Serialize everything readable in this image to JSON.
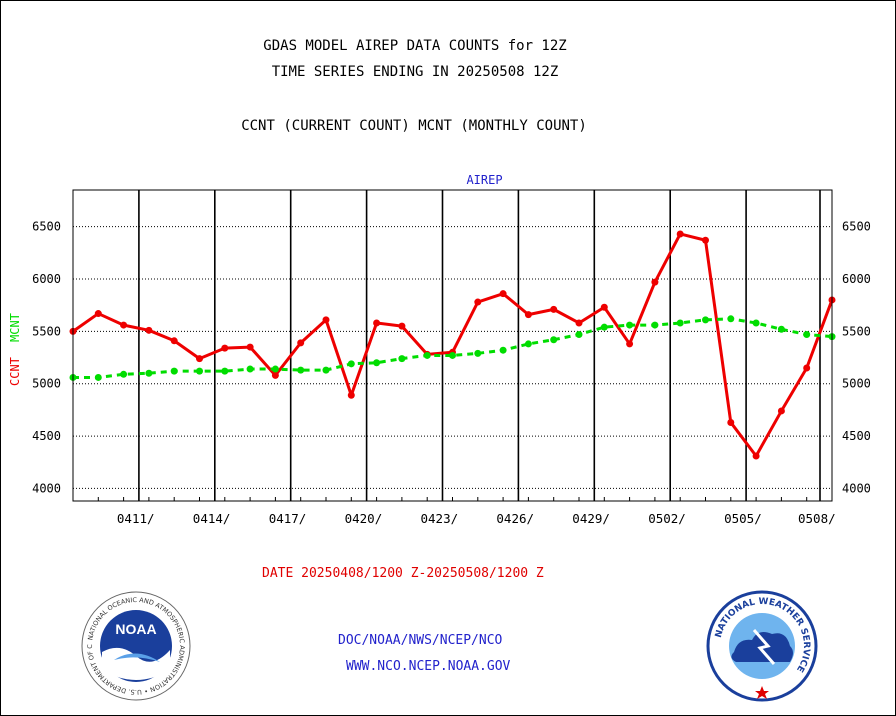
{
  "header": {
    "title_line1": "GDAS MODEL AIREP DATA COUNTS for 12Z",
    "title_line2": "TIME SERIES ENDING IN 20250508 12Z",
    "subtitle": "CCNT (CURRENT COUNT) MCNT (MONTHLY COUNT)"
  },
  "chart_data": {
    "type": "line",
    "title": "AIREP",
    "ylabel_left_ccnt": "CCNT",
    "ylabel_left_mcnt": "MCNT",
    "xlabel": "DATE 20250408/1200 Z-20250508/1200 Z",
    "ylim": [
      3880,
      6850
    ],
    "yticks": [
      4000,
      4500,
      5000,
      5500,
      6000,
      6500
    ],
    "ytick_labels": [
      "4000",
      "4500",
      "5000",
      "5500",
      "6000",
      "6500"
    ],
    "xtick_labels": [
      "0411/",
      "0414/",
      "0417/",
      "0420/",
      "0423/",
      "0426/",
      "0429/",
      "0502/",
      "0505/",
      "0508/"
    ],
    "x": [
      "0408",
      "0409",
      "0410",
      "0411",
      "0412",
      "0413",
      "0414",
      "0415",
      "0416",
      "0417",
      "0418",
      "0419",
      "0420",
      "0421",
      "0422",
      "0423",
      "0424",
      "0425",
      "0426",
      "0427",
      "0428",
      "0429",
      "0430",
      "0501",
      "0502",
      "0503",
      "0504",
      "0505",
      "0506",
      "0507",
      "0508"
    ],
    "grid": true,
    "series": [
      {
        "name": "CCNT",
        "color": "#ee0000",
        "style": "solid",
        "values": [
          5500,
          5670,
          5560,
          5510,
          5410,
          5240,
          5340,
          5350,
          5080,
          5390,
          5610,
          4890,
          5580,
          5550,
          5280,
          5300,
          5780,
          5860,
          5660,
          5710,
          5580,
          5730,
          5380,
          5970,
          6430,
          6370,
          4630,
          4310,
          4740,
          5150,
          5800
        ]
      },
      {
        "name": "MCNT",
        "color": "#00dd00",
        "style": "dashed",
        "values": [
          5060,
          5060,
          5090,
          5100,
          5120,
          5120,
          5120,
          5140,
          5140,
          5130,
          5130,
          5190,
          5200,
          5240,
          5270,
          5270,
          5290,
          5320,
          5380,
          5420,
          5470,
          5540,
          5560,
          5560,
          5580,
          5610,
          5620,
          5580,
          5520,
          5470,
          5450
        ]
      }
    ]
  },
  "footer": {
    "line1": "DOC/NOAA/NWS/NCEP/NCO",
    "line2": "WWW.NCO.NCEP.NOAA.GOV",
    "noaa_logo_text": "NOAA",
    "noaa_ring_text": "NATIONAL OCEANIC AND ATMOSPHERIC ADMINISTRATION • U.S. DEPARTMENT OF COMMERCE",
    "nws_ring_text": "NATIONAL WEATHER SERVICE"
  },
  "colors": {
    "ccnt": "#ee0000",
    "mcnt": "#00dd00",
    "axis_title": "#2222cc",
    "footer_link": "#2222cc"
  }
}
